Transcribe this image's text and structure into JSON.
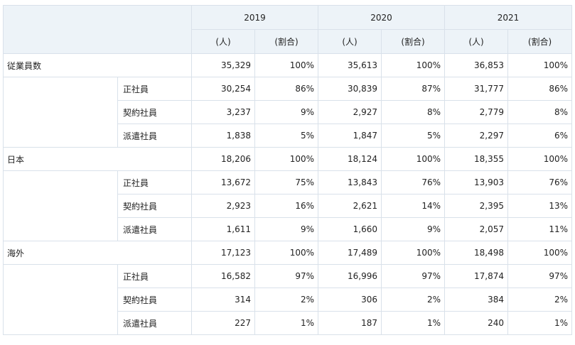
{
  "header": {
    "years": [
      "2019",
      "2020",
      "2021"
    ],
    "units": [
      "(人)",
      "(割合)"
    ]
  },
  "groups": [
    {
      "label": "従業員数",
      "total": [
        {
          "count": "35,329",
          "ratio": "100%"
        },
        {
          "count": "35,613",
          "ratio": "100%"
        },
        {
          "count": "36,853",
          "ratio": "100%"
        }
      ],
      "rows": [
        {
          "label": "正社員",
          "values": [
            {
              "count": "30,254",
              "ratio": "86%"
            },
            {
              "count": "30,839",
              "ratio": "87%"
            },
            {
              "count": "31,777",
              "ratio": "86%"
            }
          ]
        },
        {
          "label": "契約社員",
          "values": [
            {
              "count": "3,237",
              "ratio": "9%"
            },
            {
              "count": "2,927",
              "ratio": "8%"
            },
            {
              "count": "2,779",
              "ratio": "8%"
            }
          ]
        },
        {
          "label": "派遣社員",
          "values": [
            {
              "count": "1,838",
              "ratio": "5%"
            },
            {
              "count": "1,847",
              "ratio": "5%"
            },
            {
              "count": "2,297",
              "ratio": "6%"
            }
          ]
        }
      ]
    },
    {
      "label": "日本",
      "total": [
        {
          "count": "18,206",
          "ratio": "100%"
        },
        {
          "count": "18,124",
          "ratio": "100%"
        },
        {
          "count": "18,355",
          "ratio": "100%"
        }
      ],
      "rows": [
        {
          "label": "正社員",
          "values": [
            {
              "count": "13,672",
              "ratio": "75%"
            },
            {
              "count": "13,843",
              "ratio": "76%"
            },
            {
              "count": "13,903",
              "ratio": "76%"
            }
          ]
        },
        {
          "label": "契約社員",
          "values": [
            {
              "count": "2,923",
              "ratio": "16%"
            },
            {
              "count": "2,621",
              "ratio": "14%"
            },
            {
              "count": "2,395",
              "ratio": "13%"
            }
          ]
        },
        {
          "label": "派遣社員",
          "values": [
            {
              "count": "1,611",
              "ratio": "9%"
            },
            {
              "count": "1,660",
              "ratio": "9%"
            },
            {
              "count": "2,057",
              "ratio": "11%"
            }
          ]
        }
      ]
    },
    {
      "label": "海外",
      "total": [
        {
          "count": "17,123",
          "ratio": "100%"
        },
        {
          "count": "17,489",
          "ratio": "100%"
        },
        {
          "count": "18,498",
          "ratio": "100%"
        }
      ],
      "rows": [
        {
          "label": "正社員",
          "values": [
            {
              "count": "16,582",
              "ratio": "97%"
            },
            {
              "count": "16,996",
              "ratio": "97%"
            },
            {
              "count": "17,874",
              "ratio": "97%"
            }
          ]
        },
        {
          "label": "契約社員",
          "values": [
            {
              "count": "314",
              "ratio": "2%"
            },
            {
              "count": "306",
              "ratio": "2%"
            },
            {
              "count": "384",
              "ratio": "2%"
            }
          ]
        },
        {
          "label": "派遣社員",
          "values": [
            {
              "count": "227",
              "ratio": "1%"
            },
            {
              "count": "187",
              "ratio": "1%"
            },
            {
              "count": "240",
              "ratio": "1%"
            }
          ]
        }
      ]
    }
  ]
}
